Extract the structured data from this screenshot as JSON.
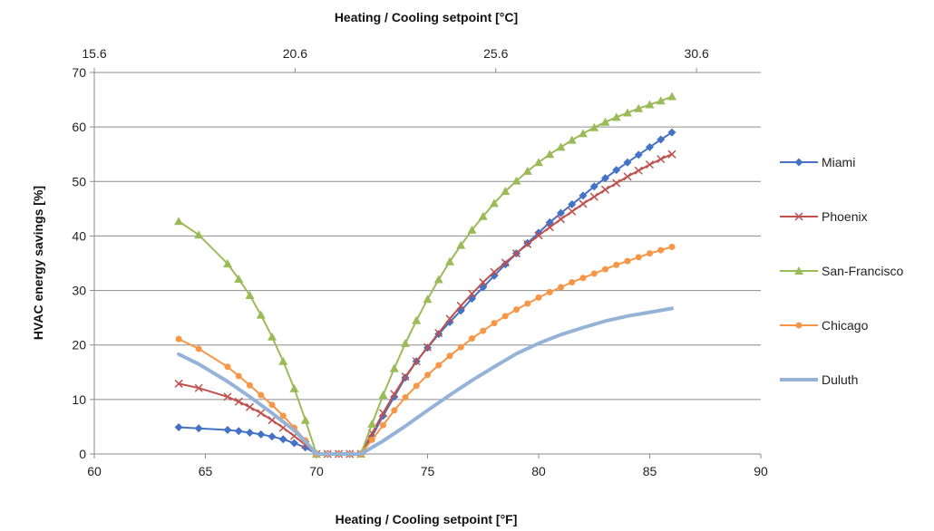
{
  "chart_data": {
    "type": "line",
    "xlabel": "Heating / Cooling setpoint [°F]",
    "x2label": "Heating / Cooling setpoint [°C]",
    "ylabel": "HVAC energy savings [%]",
    "xlim": [
      60,
      90
    ],
    "ylim": [
      0,
      70
    ],
    "x2lim": [
      15.6,
      32.2
    ],
    "xticks": [
      60,
      65,
      70,
      75,
      80,
      85,
      90
    ],
    "yticks": [
      0,
      10,
      20,
      30,
      40,
      50,
      60,
      70
    ],
    "x2ticks": [
      "15.6",
      "20.6",
      "25.6",
      "30.6"
    ],
    "grid": "horizontal",
    "legend_position": "right",
    "series": [
      {
        "name": "Miami",
        "color": "#4472C4",
        "marker": "diamond",
        "x": [
          63.8,
          64.7,
          66,
          66.5,
          67,
          67.5,
          68,
          68.5,
          69,
          69.5,
          70,
          70.5,
          71,
          71.5,
          72,
          72.5,
          73,
          73.5,
          74,
          74.5,
          75,
          75.5,
          76,
          76.5,
          77,
          77.5,
          78,
          78.5,
          79,
          79.5,
          80,
          80.5,
          81,
          81.5,
          82,
          82.5,
          83,
          83.5,
          84,
          84.5,
          85,
          85.5,
          86
        ],
        "y": [
          4.9,
          4.7,
          4.4,
          4.2,
          3.9,
          3.6,
          3.2,
          2.7,
          2.0,
          1.2,
          0,
          0,
          0,
          0,
          0,
          3.2,
          7.0,
          10.5,
          14.0,
          17.0,
          19.5,
          22.0,
          24.2,
          26.3,
          28.5,
          30.6,
          32.7,
          34.8,
          36.8,
          38.7,
          40.6,
          42.5,
          44.2,
          45.8,
          47.4,
          49.1,
          50.6,
          52.1,
          53.5,
          54.9,
          56.3,
          57.7,
          59.0
        ]
      },
      {
        "name": "Phoenix",
        "color": "#C0504D",
        "marker": "x",
        "x": [
          63.8,
          64.7,
          66,
          66.5,
          67,
          67.5,
          68,
          68.5,
          69,
          69.5,
          70,
          70.5,
          71,
          71.5,
          72,
          72.5,
          73,
          73.5,
          74,
          74.5,
          75,
          75.5,
          76,
          76.5,
          77,
          77.5,
          78,
          78.5,
          79,
          79.5,
          80,
          80.5,
          81,
          81.5,
          82,
          82.5,
          83,
          83.5,
          84,
          84.5,
          85,
          85.5,
          86
        ],
        "y": [
          12.9,
          12.1,
          10.5,
          9.6,
          8.6,
          7.5,
          6.2,
          4.8,
          3.3,
          1.7,
          0,
          0,
          0,
          0,
          0,
          3.8,
          7.5,
          11.0,
          14.2,
          17.0,
          19.6,
          22.2,
          24.8,
          27.2,
          29.4,
          31.5,
          33.4,
          35.1,
          36.8,
          38.5,
          40.1,
          41.6,
          43.1,
          44.5,
          45.9,
          47.2,
          48.5,
          49.7,
          50.9,
          52.0,
          53.1,
          54.1,
          55.0
        ]
      },
      {
        "name": "San-Francisco",
        "color": "#9BBB59",
        "marker": "triangle",
        "x": [
          63.8,
          64.7,
          66,
          66.5,
          67,
          67.5,
          68,
          68.5,
          69,
          69.5,
          70,
          72,
          72.5,
          73,
          73.5,
          74,
          74.5,
          75,
          75.5,
          76,
          76.5,
          77,
          77.5,
          78,
          78.5,
          79,
          79.5,
          80,
          80.5,
          81,
          81.5,
          82,
          82.5,
          83,
          83.5,
          84,
          84.5,
          85,
          85.5,
          86
        ],
        "y": [
          42.7,
          40.2,
          34.9,
          32.1,
          29.1,
          25.5,
          21.5,
          17.0,
          12.0,
          6.2,
          0,
          0,
          5.5,
          10.8,
          15.7,
          20.3,
          24.5,
          28.4,
          32.0,
          35.3,
          38.3,
          41.1,
          43.6,
          46.0,
          48.2,
          50.1,
          51.9,
          53.5,
          55.0,
          56.3,
          57.6,
          58.8,
          59.9,
          60.9,
          61.8,
          62.6,
          63.4,
          64.1,
          64.8,
          65.6
        ]
      },
      {
        "name": "Chicago",
        "color": "#F79646",
        "marker": "circle",
        "x": [
          63.8,
          64.7,
          66,
          66.5,
          67,
          67.5,
          68,
          68.5,
          69,
          69.5,
          70,
          70.5,
          71,
          71.5,
          72,
          72.5,
          73,
          73.5,
          74,
          74.5,
          75,
          75.5,
          76,
          76.5,
          77,
          77.5,
          78,
          78.5,
          79,
          79.5,
          80,
          80.5,
          81,
          81.5,
          82,
          82.5,
          83,
          83.5,
          84,
          84.5,
          85,
          85.5,
          86
        ],
        "y": [
          21.1,
          19.3,
          16.0,
          14.3,
          12.6,
          10.8,
          9.0,
          7.0,
          4.8,
          2.5,
          0,
          0,
          0,
          0,
          0,
          2.6,
          5.3,
          8.0,
          10.4,
          12.5,
          14.5,
          16.3,
          18.0,
          19.6,
          21.2,
          22.6,
          24.0,
          25.3,
          26.5,
          27.6,
          28.7,
          29.7,
          30.6,
          31.5,
          32.3,
          33.1,
          33.9,
          34.7,
          35.4,
          36.1,
          36.8,
          37.4,
          38.0
        ]
      },
      {
        "name": "Duluth",
        "color": "#95B3D7",
        "marker": "none",
        "x": [
          63.8,
          64.7,
          66,
          67,
          68,
          69,
          69.5,
          70,
          71,
          72,
          73,
          74,
          75,
          76,
          77,
          78,
          79,
          80,
          81,
          82,
          83,
          84,
          85,
          86
        ],
        "y": [
          18.3,
          16.5,
          13.3,
          10.5,
          7.5,
          4.3,
          2.3,
          0,
          0,
          0,
          2.4,
          5.1,
          8.0,
          10.8,
          13.5,
          16.0,
          18.4,
          20.3,
          21.9,
          23.2,
          24.4,
          25.3,
          26.0,
          26.7
        ]
      }
    ]
  }
}
